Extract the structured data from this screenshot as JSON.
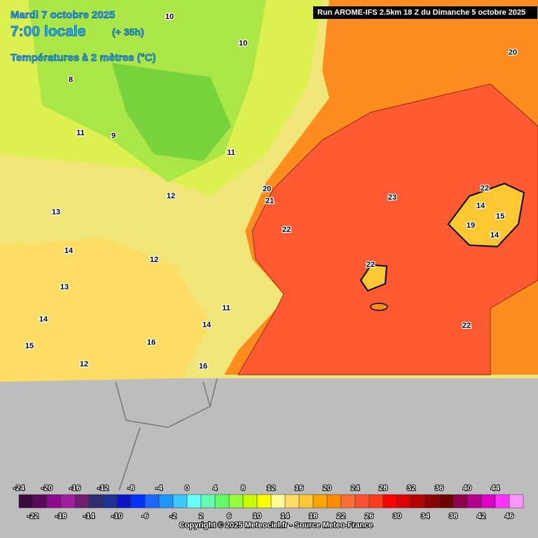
{
  "header": {
    "date": "Mardi 7 octobre 2025",
    "time": "7:00 locale",
    "lead": "(+ 35h)",
    "title": "Températures à 2 mètres (°C)",
    "run": "Run AROME-IFS 2.5km 18 Z du Dimanche 5 octobre 2025"
  },
  "map_labels": [
    20,
    23,
    22,
    21,
    20,
    22,
    22,
    14,
    15,
    19,
    14,
    22,
    12,
    11,
    10,
    9,
    13,
    14,
    13,
    12,
    14,
    15,
    16,
    12,
    11,
    14,
    16,
    10,
    8,
    11
  ],
  "scale": {
    "top_labels": [
      -24,
      -20,
      -16,
      -12,
      -8,
      -4,
      0,
      4,
      8,
      12,
      16,
      20,
      24,
      28,
      32,
      36,
      40,
      44
    ],
    "bottom_labels": [
      -22,
      -18,
      -14,
      -10,
      -6,
      -2,
      2,
      6,
      10,
      14,
      18,
      22,
      26,
      30,
      34,
      38,
      42,
      46
    ],
    "min": -24,
    "step": 2,
    "colors": [
      "#3c0a3c",
      "#5a0a5a",
      "#8c0a8c",
      "#a01ea0",
      "#6e1e6e",
      "#2d2d6e",
      "#1e3296",
      "#0a14c8",
      "#0032ff",
      "#1e64ff",
      "#1e96ff",
      "#3cc8ff",
      "#64ffff",
      "#64ffb4",
      "#64ff64",
      "#96ff3c",
      "#c8ff00",
      "#ffff00",
      "#ffff96",
      "#ffdc64",
      "#ffc832",
      "#ffa500",
      "#ff8c00",
      "#ff6e32",
      "#ff5032",
      "#ff3c1e",
      "#ff0000",
      "#dc0000",
      "#b40000",
      "#8c0000",
      "#6e0000",
      "#8c004b",
      "#b4008c",
      "#dc00c8",
      "#ff32ff",
      "#ff96ff"
    ]
  },
  "copyright": "Copyright © 2025 Meteociel.fr - Source Meteo-France"
}
